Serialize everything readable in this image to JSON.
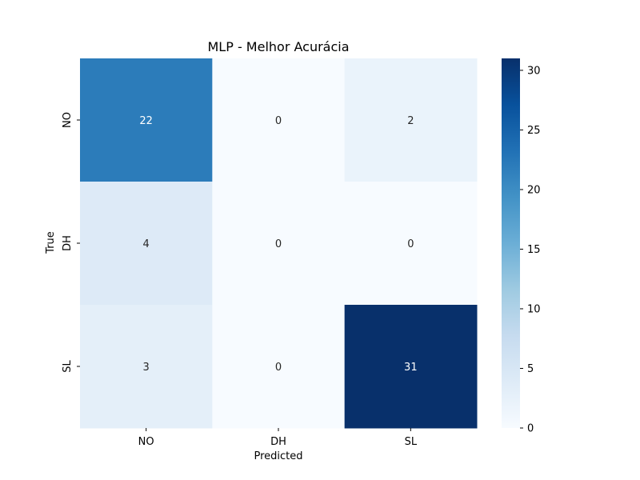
{
  "chart_data": {
    "type": "heatmap",
    "title": "MLP - Melhor Acurácia",
    "xlabel": "Predicted",
    "ylabel": "True",
    "x_categories": [
      "NO",
      "DH",
      "SL"
    ],
    "y_categories": [
      "NO",
      "DH",
      "SL"
    ],
    "values": [
      [
        22,
        0,
        2
      ],
      [
        4,
        0,
        0
      ],
      [
        3,
        0,
        31
      ]
    ],
    "colormap": "Blues",
    "color_range": [
      0,
      31
    ],
    "colorbar_ticks": [
      0,
      5,
      10,
      15,
      20,
      25,
      30
    ],
    "grid": false
  }
}
